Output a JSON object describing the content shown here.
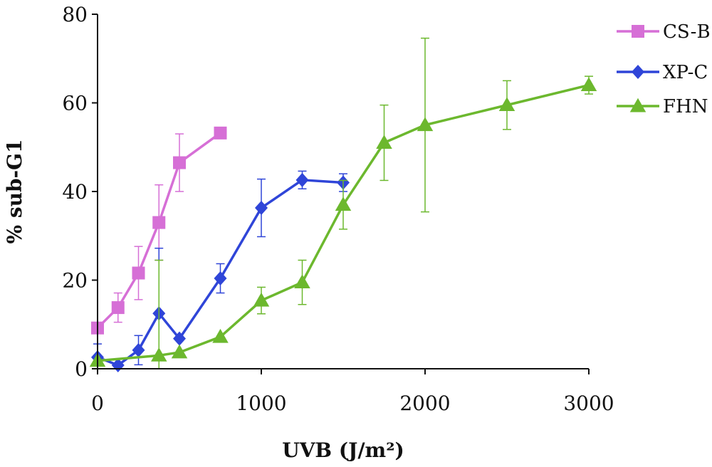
{
  "chart_data": {
    "type": "line",
    "xlabel": "UVB (J/m²)",
    "ylabel": "% sub-G1",
    "xlim": [
      0,
      3000
    ],
    "ylim": [
      0,
      80
    ],
    "x_ticks": [
      "0",
      "1000",
      "2000",
      "3000"
    ],
    "y_ticks": [
      "0",
      "20",
      "40",
      "60",
      "80"
    ],
    "legend_position": "top-right",
    "series": [
      {
        "name": "CS-B",
        "color": "#d66fd6",
        "marker": "square",
        "points": [
          {
            "x": 0,
            "y": 9.2,
            "err": 0
          },
          {
            "x": 125,
            "y": 13.8,
            "err": 3.3
          },
          {
            "x": 250,
            "y": 21.6,
            "err": 6.0
          },
          {
            "x": 375,
            "y": 33.0,
            "err": 8.5
          },
          {
            "x": 500,
            "y": 46.5,
            "err": 6.5
          },
          {
            "x": 750,
            "y": 53.2,
            "err": 0
          }
        ]
      },
      {
        "name": "XP-C",
        "color": "#2f45d8",
        "marker": "diamond",
        "points": [
          {
            "x": 0,
            "y": 2.6,
            "err": 3.0
          },
          {
            "x": 125,
            "y": 0.8,
            "err": 0
          },
          {
            "x": 250,
            "y": 4.2,
            "err": 3.3
          },
          {
            "x": 375,
            "y": 12.5,
            "err": 14.7
          },
          {
            "x": 500,
            "y": 6.8,
            "err": 0
          },
          {
            "x": 750,
            "y": 20.4,
            "err": 3.3
          },
          {
            "x": 1000,
            "y": 36.3,
            "err": 6.5
          },
          {
            "x": 1250,
            "y": 42.6,
            "err": 2.0
          },
          {
            "x": 1500,
            "y": 42.0,
            "err": 2.0
          }
        ]
      },
      {
        "name": "FHN",
        "color": "#6cb82e",
        "marker": "triangle",
        "points": [
          {
            "x": 0,
            "y": 1.8,
            "err": 0
          },
          {
            "x": 375,
            "y": 3.0,
            "err": 21.5
          },
          {
            "x": 500,
            "y": 3.7,
            "err": 0
          },
          {
            "x": 750,
            "y": 7.2,
            "err": 0
          },
          {
            "x": 1000,
            "y": 15.4,
            "err": 3.0
          },
          {
            "x": 1250,
            "y": 19.5,
            "err": 5.0
          },
          {
            "x": 1500,
            "y": 37.0,
            "err": 5.5
          },
          {
            "x": 1750,
            "y": 51.0,
            "err": 8.5
          },
          {
            "x": 2000,
            "y": 55.0,
            "err": 19.6
          },
          {
            "x": 2500,
            "y": 59.5,
            "err": 5.5
          },
          {
            "x": 3000,
            "y": 64.0,
            "err": 2.0
          }
        ]
      }
    ]
  }
}
